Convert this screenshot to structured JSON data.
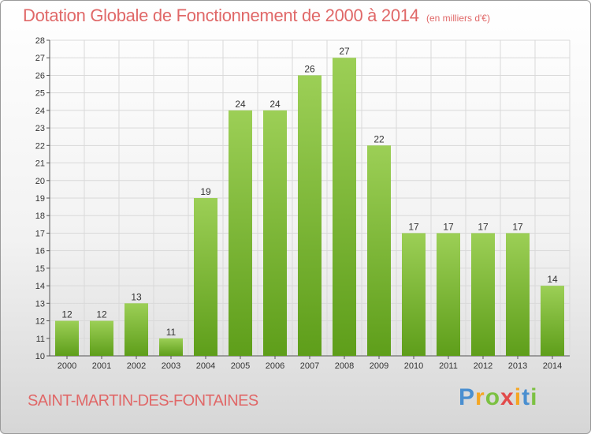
{
  "header": {
    "title": "Dotation Globale de Fonctionnement de 2000 à 2014",
    "subtitle": "(en milliers d'€)"
  },
  "footer": {
    "commune": "SAINT-MARTIN-DES-FONTAINES",
    "logo_letters": [
      "P",
      "r",
      "o",
      "x",
      "i",
      "t",
      "i"
    ]
  },
  "colors": {
    "bar_top": "#9ccf56",
    "bar_bottom": "#5e9e1a",
    "grid": "#d9d9d9",
    "text_accent": "#e06868"
  },
  "chart_data": {
    "type": "bar",
    "title": "Dotation Globale de Fonctionnement de 2000 à 2014",
    "subtitle": "(en milliers d'€)",
    "categories": [
      "2000",
      "2001",
      "2002",
      "2003",
      "2004",
      "2005",
      "2006",
      "2007",
      "2008",
      "2009",
      "2010",
      "2011",
      "2012",
      "2013",
      "2014"
    ],
    "values": [
      12,
      12,
      13,
      11,
      19,
      24,
      24,
      26,
      27,
      22,
      17,
      17,
      17,
      17,
      14
    ],
    "xlabel": "",
    "ylabel": "",
    "ylim": [
      10,
      28
    ],
    "yticks": [
      10,
      11,
      12,
      13,
      14,
      15,
      16,
      17,
      18,
      19,
      20,
      21,
      22,
      23,
      24,
      25,
      26,
      27,
      28
    ],
    "grid": true
  }
}
